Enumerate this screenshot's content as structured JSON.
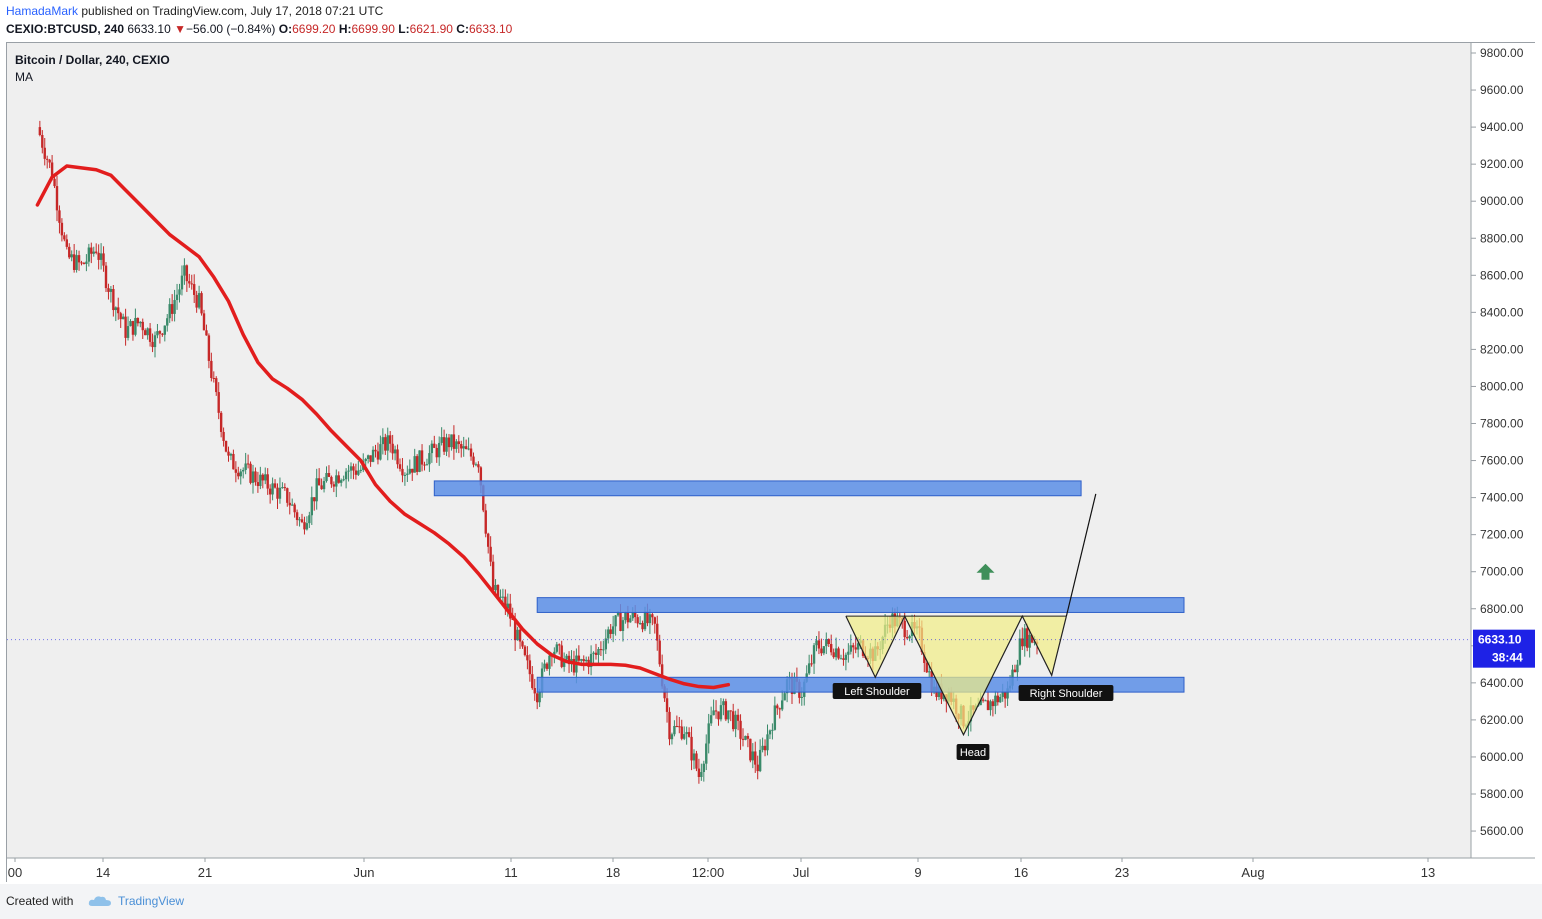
{
  "header": {
    "author": "HamadaMark",
    "published": " published on TradingView.com, July 17, 2018 07:21 UTC",
    "symbol": "CEXIO:BTCUSD, 240",
    "last": "6633.10",
    "change": "−​56.00 (−0.84%)",
    "o_label": "O:",
    "o_value": "6699.20",
    "h_label": "H:",
    "h_value": "6699.90",
    "l_label": "L:",
    "l_value": "6621.90",
    "c_label": "C:",
    "c_value": "6633.10"
  },
  "legend": {
    "title": "Bitcoin / Dollar, 240, CEXIO",
    "indicator": "MA"
  },
  "price_tag": {
    "price": "6633.10",
    "countdown": "38:44"
  },
  "pattern_labels": {
    "left_shoulder": "Left Shoulder",
    "head": "Head",
    "right_shoulder": "Right Shoulder"
  },
  "footer": {
    "created_with": "Created with",
    "brand": "TradingView"
  },
  "colors": {
    "up": "#3a8a6a",
    "down": "#c62828",
    "ma": "#e21d1d",
    "zone": "#5b8ee6",
    "pattern_fill": "#f2ee85",
    "price_tag": "#1e22e6",
    "arrow": "#3f8f5a"
  },
  "chart_data": {
    "type": "candlestick",
    "title": "Bitcoin / Dollar, 240, CEXIO",
    "ylim": [
      5480,
      9880
    ],
    "y_ticks": [
      "9800.00",
      "9600.00",
      "9400.00",
      "9200.00",
      "9000.00",
      "8800.00",
      "8600.00",
      "8400.00",
      "8200.00",
      "8000.00",
      "7800.00",
      "7600.00",
      "7400.00",
      "7200.00",
      "7000.00",
      "6800.00",
      "6600.00",
      "6400.00",
      "6200.00",
      "6000.00",
      "5800.00",
      "5600.00"
    ],
    "x_ticks": [
      "00",
      "14",
      "21",
      "Jun",
      "11",
      "18",
      "12:00",
      "Jul",
      "9",
      "16",
      "23",
      "Aug",
      "13"
    ],
    "close_path": [
      [
        "2018-05-10",
        9400
      ],
      [
        "2018-05-11",
        9150
      ],
      [
        "2018-05-12",
        8700
      ],
      [
        "2018-05-13",
        8650
      ],
      [
        "2018-05-14",
        8750
      ],
      [
        "2018-05-15",
        8500
      ],
      [
        "2018-05-16",
        8300
      ],
      [
        "2018-05-17",
        8350
      ],
      [
        "2018-05-18",
        8250
      ],
      [
        "2018-05-19",
        8400
      ],
      [
        "2018-05-20",
        8600
      ],
      [
        "2018-05-21",
        8450
      ],
      [
        "2018-05-22",
        8000
      ],
      [
        "2018-05-23",
        7600
      ],
      [
        "2018-05-24",
        7550
      ],
      [
        "2018-05-25",
        7500
      ],
      [
        "2018-05-26",
        7450
      ],
      [
        "2018-05-27",
        7400
      ],
      [
        "2018-05-28",
        7250
      ],
      [
        "2018-05-29",
        7450
      ],
      [
        "2018-05-30",
        7500
      ],
      [
        "2018-05-31",
        7550
      ],
      [
        "2018-06-01",
        7550
      ],
      [
        "2018-06-02",
        7650
      ],
      [
        "2018-06-03",
        7700
      ],
      [
        "2018-06-04",
        7550
      ],
      [
        "2018-06-05",
        7600
      ],
      [
        "2018-06-06",
        7650
      ],
      [
        "2018-06-07",
        7700
      ],
      [
        "2018-06-08",
        7650
      ],
      [
        "2018-06-09",
        7600
      ],
      [
        "2018-06-10",
        6900
      ],
      [
        "2018-06-11",
        6800
      ],
      [
        "2018-06-12",
        6550
      ],
      [
        "2018-06-13",
        6350
      ],
      [
        "2018-06-14",
        6600
      ],
      [
        "2018-06-15",
        6500
      ],
      [
        "2018-06-16",
        6500
      ],
      [
        "2018-06-17",
        6550
      ],
      [
        "2018-06-18",
        6700
      ],
      [
        "2018-06-19",
        6750
      ],
      [
        "2018-06-20",
        6750
      ],
      [
        "2018-06-21",
        6700
      ],
      [
        "2018-06-22",
        6150
      ],
      [
        "2018-06-23",
        6150
      ],
      [
        "2018-06-24",
        5900
      ],
      [
        "2018-06-25",
        6250
      ],
      [
        "2018-06-26",
        6250
      ],
      [
        "2018-06-27",
        6100
      ],
      [
        "2018-06-28",
        5950
      ],
      [
        "2018-06-29",
        6200
      ],
      [
        "2018-06-30",
        6400
      ],
      [
        "2018-07-01",
        6350
      ],
      [
        "2018-07-02",
        6600
      ],
      [
        "2018-07-03",
        6600
      ],
      [
        "2018-07-04",
        6550
      ],
      [
        "2018-07-05",
        6600
      ],
      [
        "2018-07-06",
        6550
      ],
      [
        "2018-07-07",
        6750
      ],
      [
        "2018-07-08",
        6700
      ],
      [
        "2018-07-09",
        6650
      ],
      [
        "2018-07-10",
        6350
      ],
      [
        "2018-07-11",
        6350
      ],
      [
        "2018-07-12",
        6200
      ],
      [
        "2018-07-13",
        6250
      ],
      [
        "2018-07-14",
        6300
      ],
      [
        "2018-07-15",
        6350
      ],
      [
        "2018-07-16",
        6650
      ],
      [
        "2018-07-17",
        6633
      ]
    ],
    "moving_average": [
      [
        "2018-05-10",
        8980
      ],
      [
        "2018-05-11",
        9130
      ],
      [
        "2018-05-12",
        9190
      ],
      [
        "2018-05-13",
        9180
      ],
      [
        "2018-05-14",
        9170
      ],
      [
        "2018-05-15",
        9140
      ],
      [
        "2018-05-16",
        9060
      ],
      [
        "2018-05-17",
        8980
      ],
      [
        "2018-05-18",
        8900
      ],
      [
        "2018-05-19",
        8820
      ],
      [
        "2018-05-20",
        8760
      ],
      [
        "2018-05-21",
        8700
      ],
      [
        "2018-05-22",
        8590
      ],
      [
        "2018-05-23",
        8460
      ],
      [
        "2018-05-24",
        8280
      ],
      [
        "2018-05-25",
        8130
      ],
      [
        "2018-05-26",
        8040
      ],
      [
        "2018-05-27",
        7990
      ],
      [
        "2018-05-28",
        7930
      ],
      [
        "2018-05-29",
        7850
      ],
      [
        "2018-05-30",
        7760
      ],
      [
        "2018-05-31",
        7680
      ],
      [
        "2018-06-01",
        7600
      ],
      [
        "2018-06-02",
        7470
      ],
      [
        "2018-06-03",
        7380
      ],
      [
        "2018-06-04",
        7310
      ],
      [
        "2018-06-05",
        7260
      ],
      [
        "2018-06-06",
        7210
      ],
      [
        "2018-06-07",
        7150
      ],
      [
        "2018-06-08",
        7080
      ],
      [
        "2018-06-09",
        6990
      ],
      [
        "2018-06-10",
        6890
      ],
      [
        "2018-06-11",
        6790
      ],
      [
        "2018-06-12",
        6690
      ],
      [
        "2018-06-13",
        6610
      ],
      [
        "2018-06-14",
        6550
      ],
      [
        "2018-06-15",
        6515
      ],
      [
        "2018-06-16",
        6500
      ],
      [
        "2018-06-17",
        6500
      ],
      [
        "2018-06-18",
        6500
      ],
      [
        "2018-06-19",
        6495
      ],
      [
        "2018-06-20",
        6480
      ],
      [
        "2018-06-21",
        6450
      ],
      [
        "2018-06-22",
        6420
      ],
      [
        "2018-06-23",
        6395
      ],
      [
        "2018-06-24",
        6380
      ],
      [
        "2018-06-25",
        6375
      ],
      [
        "2018-06-26",
        6390
      ]
    ],
    "zones": [
      {
        "from": "2018-06-06",
        "to": "2018-07-20",
        "low": 7410,
        "high": 7490
      },
      {
        "from": "2018-06-13",
        "to": "2018-07-27",
        "low": 6780,
        "high": 6860
      },
      {
        "from": "2018-06-13",
        "to": "2018-07-27",
        "low": 6350,
        "high": 6430
      }
    ],
    "pattern": {
      "points": [
        [
          "2018-07-04",
          6760
        ],
        [
          "2018-07-06",
          6430
        ],
        [
          "2018-07-08",
          6760
        ],
        [
          "2018-07-12",
          6120
        ],
        [
          "2018-07-16",
          6760
        ],
        [
          "2018-07-18",
          6440
        ],
        [
          "2018-07-19",
          6760
        ]
      ],
      "target_line": [
        [
          "2018-07-19",
          6760
        ],
        [
          "2018-07-21",
          7420
        ]
      ]
    }
  }
}
